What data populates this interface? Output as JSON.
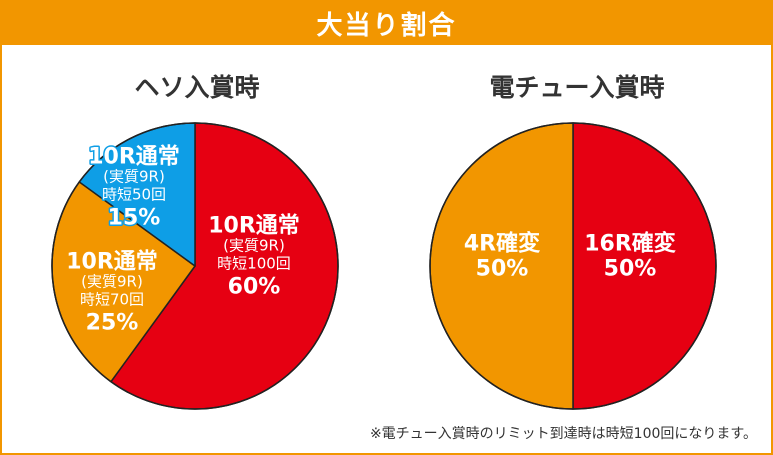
{
  "banner": {
    "title": "大当り割合"
  },
  "chart_data": [
    {
      "type": "pie",
      "title": "ヘソ入賞時",
      "slices": [
        {
          "label": "10R通常",
          "detail": [
            "(実質9R)",
            "時短100回"
          ],
          "value": 60,
          "value_label": "60%",
          "color": "#e60012"
        },
        {
          "label": "10R通常",
          "detail": [
            "(実質9R)",
            "時短70回"
          ],
          "value": 25,
          "value_label": "25%",
          "color": "#f29600"
        },
        {
          "label": "10R通常",
          "detail": [
            "(実質9R)",
            "時短50回"
          ],
          "value": 15,
          "value_label": "15%",
          "color": "#0e9ee6"
        }
      ]
    },
    {
      "type": "pie",
      "title": "電チュー入賞時",
      "slices": [
        {
          "label": "16R確変",
          "detail": [],
          "value": 50,
          "value_label": "50%",
          "color": "#e60012"
        },
        {
          "label": "4R確変",
          "detail": [],
          "value": 50,
          "value_label": "50%",
          "color": "#f29600"
        }
      ]
    }
  ],
  "footnote": "※電チュー入賞時のリミット到達時は時短100回になります。"
}
